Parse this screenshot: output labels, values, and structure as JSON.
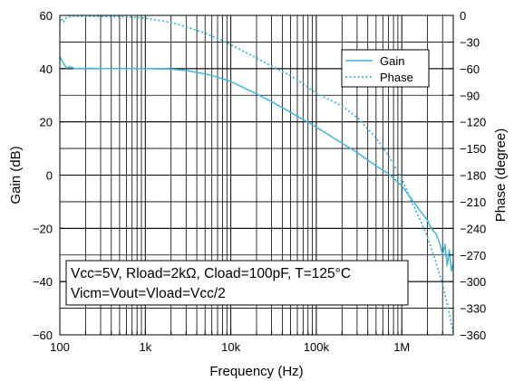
{
  "chart_data": {
    "type": "line",
    "xlabel": "Frequency (Hz)",
    "ylabel": "Gain (dB)",
    "y2label": "Phase (degree)",
    "xscale": "log",
    "xlim": [
      100,
      4000000
    ],
    "ylim": [
      -60,
      60
    ],
    "y2lim": [
      -360,
      0
    ],
    "grid": true,
    "legend_position": "top-right",
    "x_ticks": [
      {
        "value": 100,
        "label": "100"
      },
      {
        "value": 1000,
        "label": "1k"
      },
      {
        "value": 10000,
        "label": "10k"
      },
      {
        "value": 100000,
        "label": "100k"
      },
      {
        "value": 1000000,
        "label": "1M"
      }
    ],
    "y_ticks": [
      {
        "value": 60,
        "label": "60"
      },
      {
        "value": 40,
        "label": "40"
      },
      {
        "value": 20,
        "label": "20"
      },
      {
        "value": 0,
        "label": "0"
      },
      {
        "value": -20,
        "label": "−20"
      },
      {
        "value": -40,
        "label": "−40"
      },
      {
        "value": -60,
        "label": "−60"
      }
    ],
    "y2_ticks": [
      {
        "value": 0,
        "label": "0"
      },
      {
        "value": -30,
        "label": "−30"
      },
      {
        "value": -60,
        "label": "−60"
      },
      {
        "value": -90,
        "label": "−90"
      },
      {
        "value": -120,
        "label": "−120"
      },
      {
        "value": -150,
        "label": "−150"
      },
      {
        "value": -180,
        "label": "−180"
      },
      {
        "value": -210,
        "label": "−210"
      },
      {
        "value": -240,
        "label": "−240"
      },
      {
        "value": -270,
        "label": "−270"
      },
      {
        "value": -300,
        "label": "−300"
      },
      {
        "value": -330,
        "label": "−330"
      },
      {
        "value": -360,
        "label": "−360"
      }
    ],
    "series": [
      {
        "name": "Gain",
        "axis": "left",
        "style": "solid",
        "color": "#3fb6dc",
        "points": [
          [
            100,
            44.5
          ],
          [
            110,
            42
          ],
          [
            120,
            40.2
          ],
          [
            130,
            40.8
          ],
          [
            150,
            40
          ],
          [
            200,
            40.1
          ],
          [
            300,
            40
          ],
          [
            500,
            40
          ],
          [
            1000,
            40
          ],
          [
            2000,
            39.8
          ],
          [
            3000,
            39.3
          ],
          [
            5000,
            38
          ],
          [
            7000,
            36.8
          ],
          [
            10000,
            35.2
          ],
          [
            20000,
            30.5
          ],
          [
            30000,
            27.6
          ],
          [
            50000,
            23.6
          ],
          [
            70000,
            20.9
          ],
          [
            100000,
            18
          ],
          [
            200000,
            12
          ],
          [
            300000,
            8.5
          ],
          [
            500000,
            3.5
          ],
          [
            700000,
            0.5
          ],
          [
            1000000,
            -4
          ],
          [
            1300000,
            -9
          ],
          [
            1600000,
            -13
          ],
          [
            2000000,
            -17
          ],
          [
            2200000,
            -20
          ],
          [
            2500000,
            -22
          ],
          [
            2800000,
            -26
          ],
          [
            3000000,
            -30
          ],
          [
            3200000,
            -26
          ],
          [
            3400000,
            -34
          ],
          [
            3600000,
            -28
          ],
          [
            3800000,
            -36
          ],
          [
            4000000,
            -33
          ]
        ]
      },
      {
        "name": "Phase",
        "axis": "right",
        "style": "dotted",
        "color": "#3fb6dc",
        "points": [
          [
            100,
            -6
          ],
          [
            105,
            -3
          ],
          [
            110,
            -8
          ],
          [
            120,
            -2
          ],
          [
            140,
            -1
          ],
          [
            200,
            -1
          ],
          [
            500,
            -1.5
          ],
          [
            1000,
            -3
          ],
          [
            2000,
            -8
          ],
          [
            3000,
            -13
          ],
          [
            5000,
            -20
          ],
          [
            7000,
            -26
          ],
          [
            10000,
            -33
          ],
          [
            20000,
            -48
          ],
          [
            30000,
            -57
          ],
          [
            50000,
            -68
          ],
          [
            70000,
            -77
          ],
          [
            100000,
            -88
          ],
          [
            200000,
            -102
          ],
          [
            300000,
            -115
          ],
          [
            500000,
            -138
          ],
          [
            700000,
            -158
          ],
          [
            1000000,
            -184
          ],
          [
            1300000,
            -210
          ],
          [
            1600000,
            -228
          ],
          [
            2000000,
            -250
          ],
          [
            2500000,
            -278
          ],
          [
            3000000,
            -303
          ],
          [
            3500000,
            -330
          ],
          [
            4000000,
            -358
          ]
        ]
      }
    ],
    "annotation": [
      "Vcc=5V, Rload=2kΩ, Cload=100pF, T=125°C",
      "Vicm=Vout=Vload=Vcc/2"
    ]
  }
}
